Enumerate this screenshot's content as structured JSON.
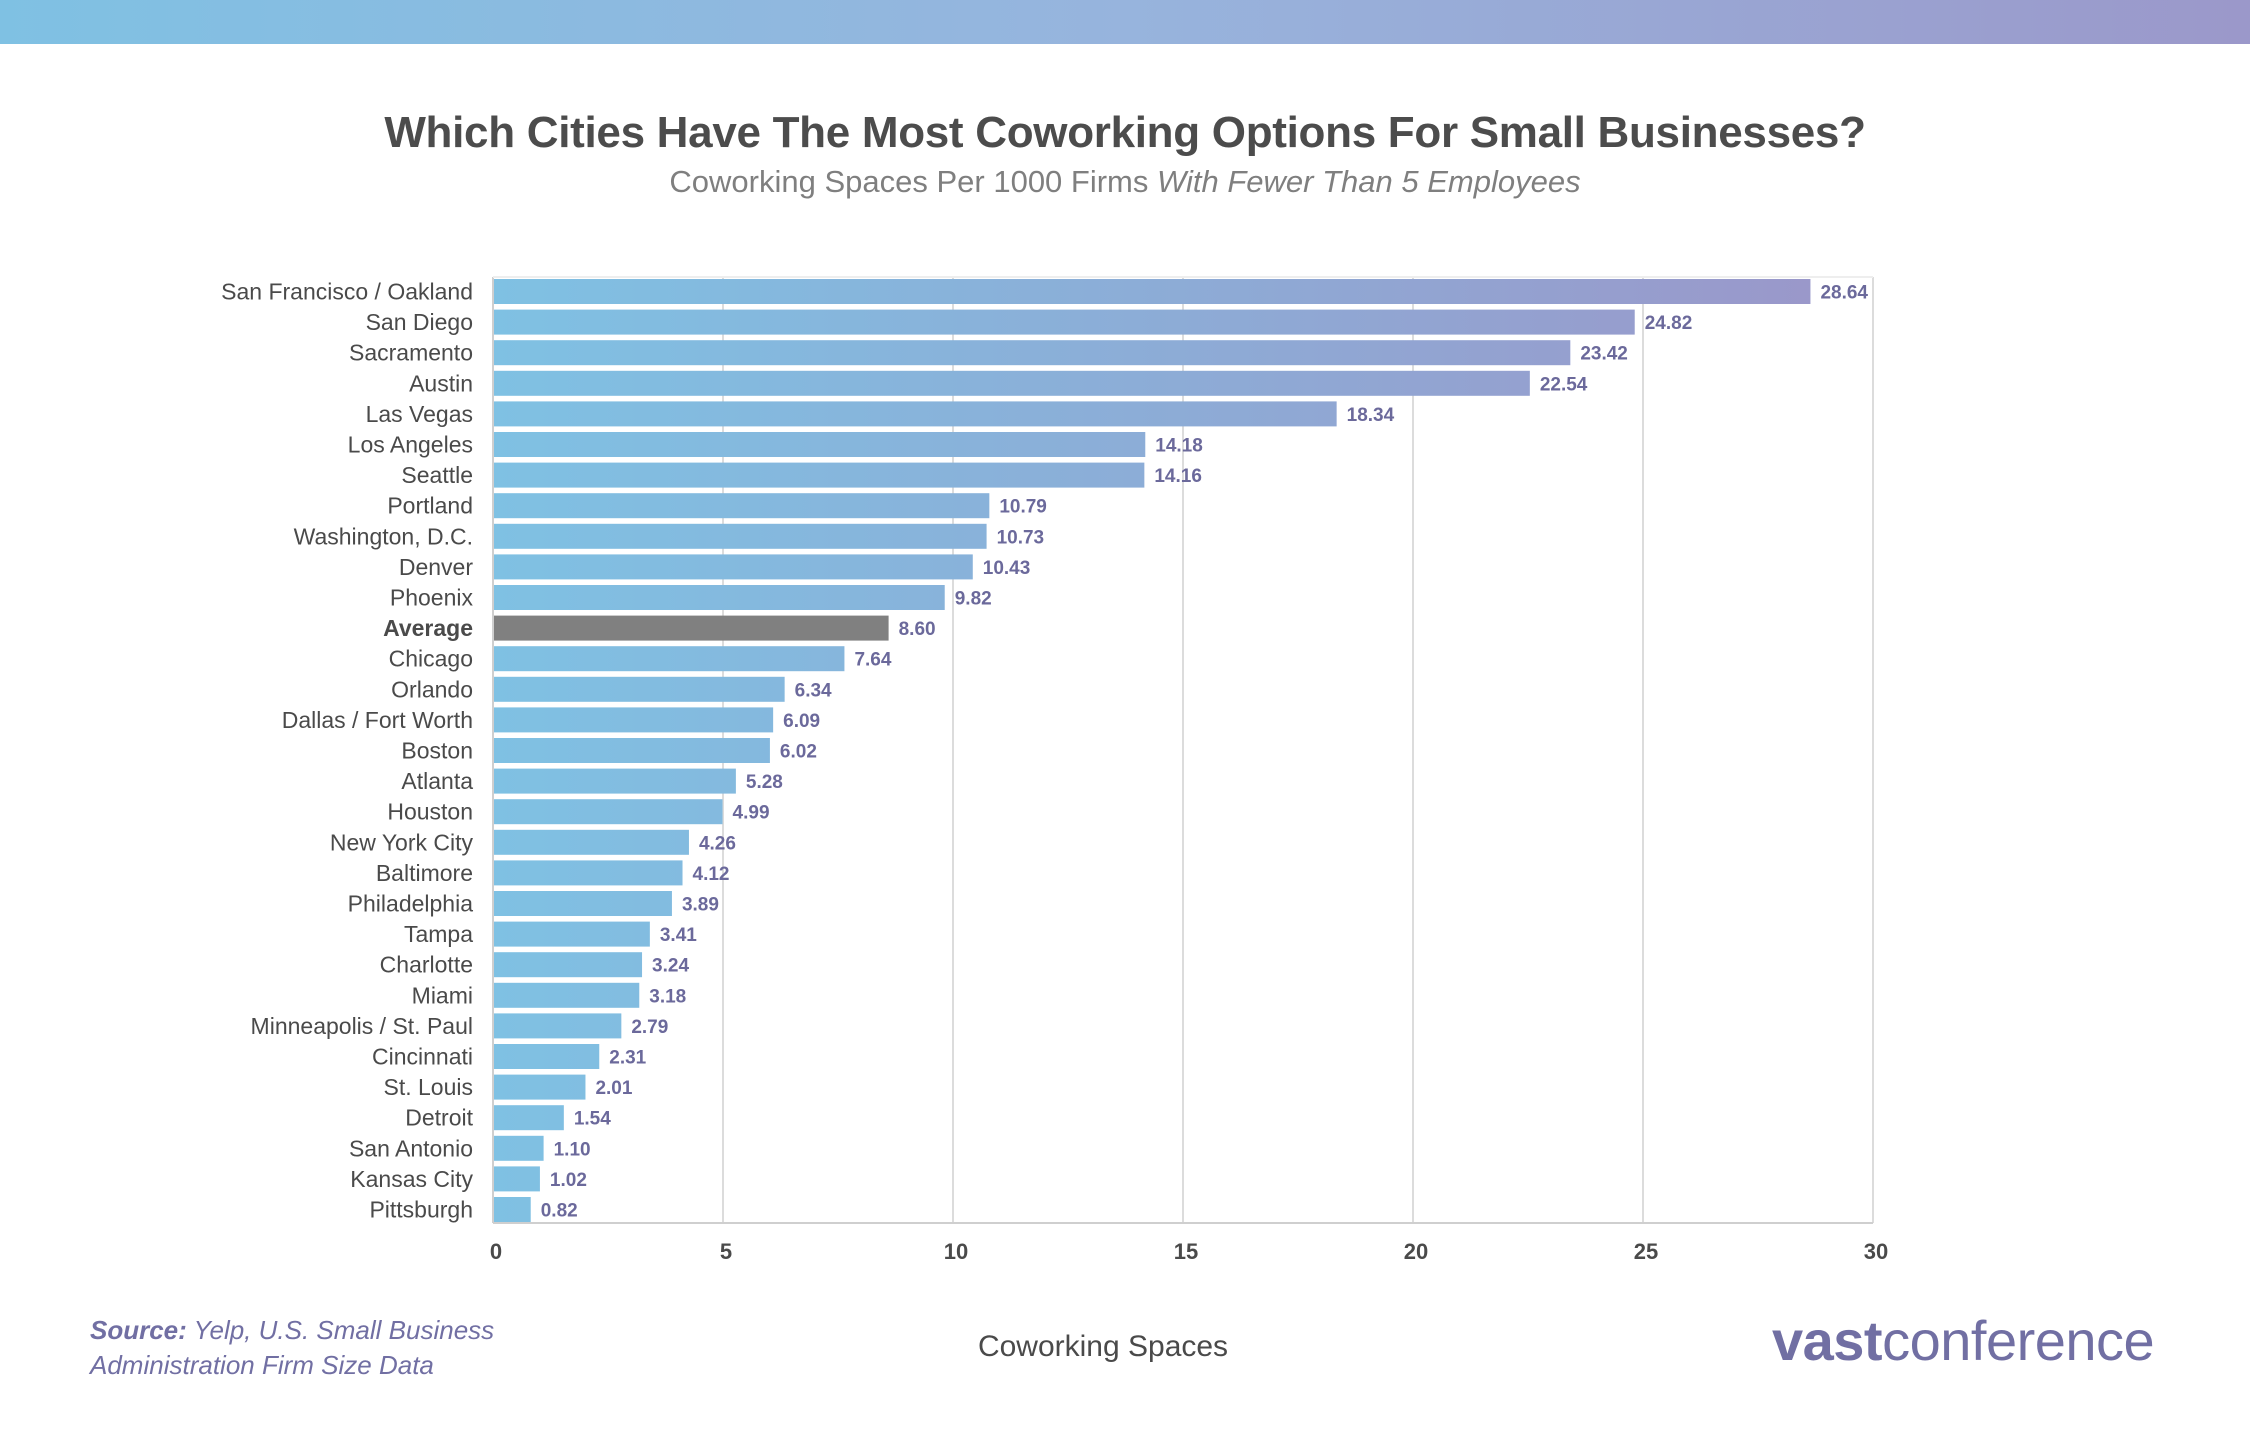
{
  "colors": {
    "bar_gradient_start": "#7fc1e3",
    "bar_gradient_end": "#9b96c9",
    "average_bar": "#808080",
    "value_label": "#6b699b",
    "brand": "#716fa3"
  },
  "header": {
    "title": "Which Cities Have The Most Coworking Options For Small Businesses?",
    "subtitle_regular": "Coworking Spaces Per 1000 Firms",
    "subtitle_italic": "With Fewer Than 5 Employees"
  },
  "footer": {
    "source_label": "Source:",
    "source_line1": "Yelp, U.S. Small Business",
    "source_line2": "Administration Firm Size Data",
    "logo_bold": "vast",
    "logo_light": "conference"
  },
  "chart_data": {
    "type": "bar",
    "orientation": "horizontal",
    "title": "Which Cities Have The Most Coworking Options For Small Businesses?",
    "subtitle": "Coworking Spaces Per 1000 Firms With Fewer Than 5 Employees",
    "xlabel": "Coworking Spaces",
    "ylabel": "",
    "xlim": [
      0,
      30
    ],
    "xticks": [
      0,
      5,
      10,
      15,
      20,
      25,
      30
    ],
    "xtick_labels": [
      "0",
      "5",
      "10",
      "15",
      "20",
      "25",
      "30"
    ],
    "grid": "vertical",
    "highlight_category": "Average",
    "categories": [
      "San Francisco / Oakland",
      "San Diego",
      "Sacramento",
      "Austin",
      "Las Vegas",
      "Los Angeles",
      "Seattle",
      "Portland",
      "Washington, D.C.",
      "Denver",
      "Phoenix",
      "Average",
      "Chicago",
      "Orlando",
      "Dallas / Fort Worth",
      "Boston",
      "Atlanta",
      "Houston",
      "New York City",
      "Baltimore",
      "Philadelphia",
      "Tampa",
      "Charlotte",
      "Miami",
      "Minneapolis / St. Paul",
      "Cincinnati",
      "St. Louis",
      "Detroit",
      "San Antonio",
      "Kansas City",
      "Pittsburgh"
    ],
    "values": [
      28.64,
      24.82,
      23.42,
      22.54,
      18.34,
      14.18,
      14.16,
      10.79,
      10.73,
      10.43,
      9.82,
      8.6,
      7.64,
      6.34,
      6.09,
      6.02,
      5.28,
      4.99,
      4.26,
      4.12,
      3.89,
      3.41,
      3.24,
      3.18,
      2.79,
      2.31,
      2.01,
      1.54,
      1.1,
      1.02,
      0.82
    ],
    "value_labels": [
      "28.64",
      "24.82",
      "23.42",
      "22.54",
      "18.34",
      "14.18",
      "14.16",
      "10.79",
      "10.73",
      "10.43",
      "9.82",
      "8.60",
      "7.64",
      "6.34",
      "6.09",
      "6.02",
      "5.28",
      "4.99",
      "4.26",
      "4.12",
      "3.89",
      "3.41",
      "3.24",
      "3.18",
      "2.79",
      "2.31",
      "2.01",
      "1.54",
      "1.10",
      "1.02",
      "0.82"
    ]
  }
}
